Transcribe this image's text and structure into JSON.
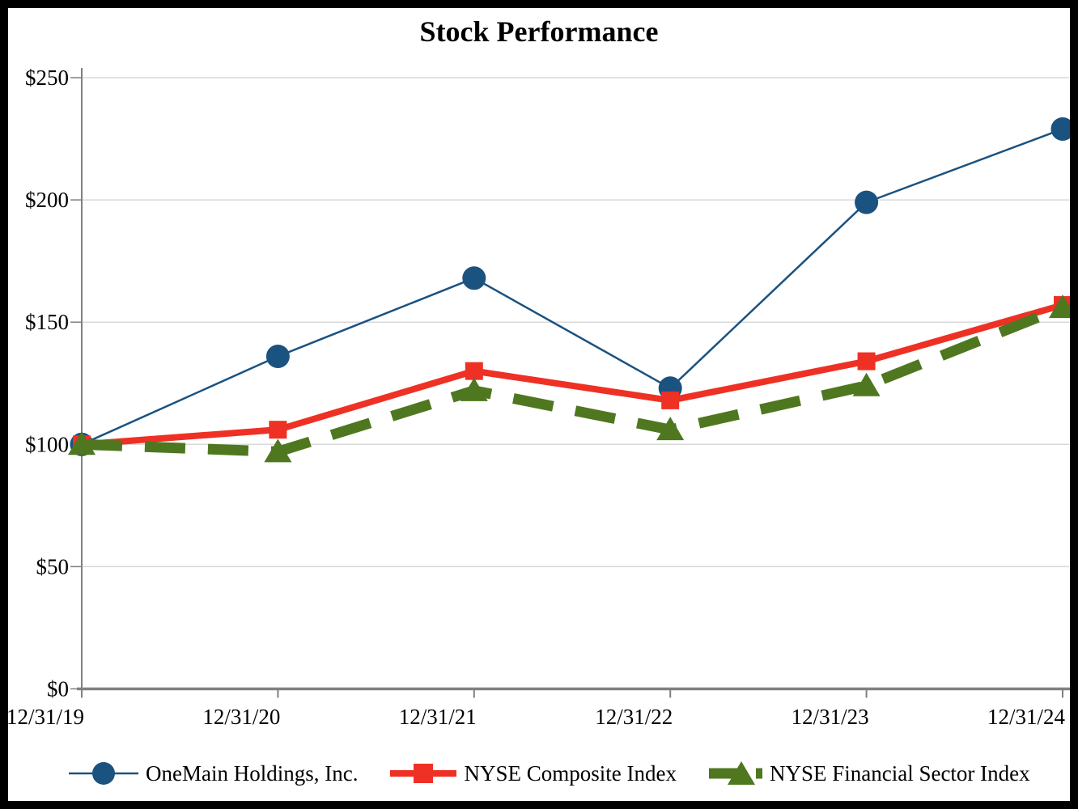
{
  "chart_data": {
    "type": "line",
    "title": "Stock Performance",
    "xlabel": "",
    "ylabel": "",
    "ylim": [
      0,
      250
    ],
    "grid": true,
    "legend_position": "bottom",
    "x_labels": [
      "12/31/19",
      "12/31/20",
      "12/31/21",
      "12/31/22",
      "12/31/23",
      "12/31/24"
    ],
    "y_ticks": [
      {
        "label": "$0",
        "value": 0
      },
      {
        "label": "$50",
        "value": 50
      },
      {
        "label": "$100",
        "value": 100
      },
      {
        "label": "$150",
        "value": 150
      },
      {
        "label": "$200",
        "value": 200
      },
      {
        "label": "$250",
        "value": 250
      }
    ],
    "series": [
      {
        "name": "OneMain Holdings, Inc.",
        "marker": "circle",
        "line_style": "solid",
        "line_width": 2.5,
        "color": "#1A5280",
        "values": [
          100,
          136,
          168,
          123,
          199,
          229
        ]
      },
      {
        "name": "NYSE Composite Index",
        "marker": "square",
        "line_style": "solid",
        "line_width": 8,
        "color": "#EE3124",
        "values": [
          100,
          106,
          130,
          118,
          134,
          157
        ]
      },
      {
        "name": "NYSE Financial Sector Index",
        "marker": "triangle",
        "line_style": "dashed",
        "line_width": 13,
        "color": "#4E771F",
        "values": [
          100,
          97,
          122,
          106,
          124,
          156
        ]
      }
    ]
  },
  "colors": {
    "background": "#FFFFFF",
    "border": "#000000",
    "gridline": "#D9D9D9",
    "axis": "#808080",
    "text": "#000000"
  }
}
